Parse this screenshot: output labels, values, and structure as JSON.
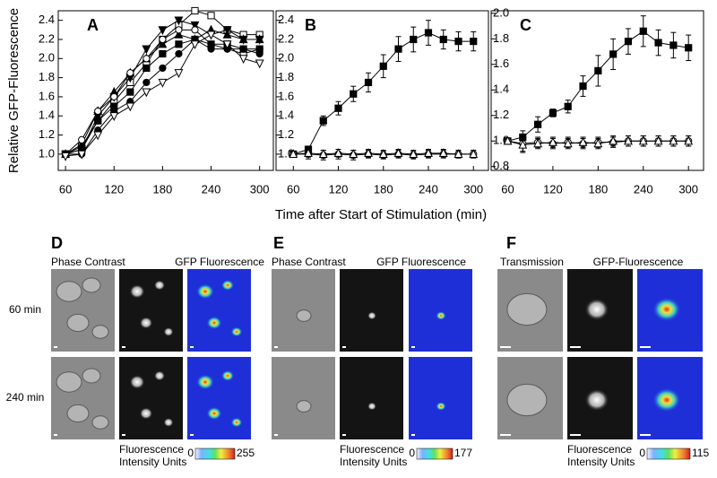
{
  "figure": {
    "ylabel": "Relative GFP-Fluorescence",
    "xlabel": "Time after Start of Stimulation  (min)"
  },
  "chart_data": [
    {
      "type": "line",
      "label": "A",
      "xlim": [
        51,
        317
      ],
      "ylim": [
        0.83,
        2.5
      ],
      "xticks": [
        60,
        120,
        180,
        240,
        300
      ],
      "yticks": [
        {
          "value": 1,
          "label": "1.0"
        },
        1.2,
        1.4,
        1.6,
        1.8,
        {
          "value": 2,
          "label": "2.0"
        },
        2.2,
        2.4
      ],
      "x": [
        60,
        80,
        100,
        120,
        140,
        160,
        180,
        200,
        220,
        240,
        260,
        280,
        300
      ],
      "series": [
        {
          "color": "#000000",
          "marker": "square-open",
          "values": [
            1.0,
            1.08,
            1.35,
            1.55,
            1.75,
            1.95,
            2.2,
            2.35,
            2.5,
            2.45,
            2.3,
            2.25,
            2.25
          ]
        },
        {
          "color": "#000000",
          "marker": "tri-down-filled",
          "values": [
            1.0,
            1.05,
            1.4,
            1.6,
            1.8,
            2.1,
            2.3,
            2.4,
            2.35,
            2.25,
            2.3,
            2.2,
            2.2
          ]
        },
        {
          "color": "#000000",
          "marker": "tri-up-filled",
          "values": [
            1.0,
            1.1,
            1.45,
            1.65,
            1.85,
            2.0,
            2.15,
            2.25,
            2.2,
            2.3,
            2.25,
            2.2,
            2.2
          ]
        },
        {
          "color": "#000000",
          "marker": "circle-open",
          "values": [
            1.0,
            1.15,
            1.45,
            1.6,
            1.85,
            2.0,
            2.2,
            2.3,
            2.3,
            2.15,
            2.1,
            2.05,
            2.1
          ]
        },
        {
          "color": "#000000",
          "marker": "square-filled",
          "values": [
            1.0,
            1.05,
            1.35,
            1.5,
            1.65,
            1.9,
            2.05,
            2.15,
            2.2,
            2.15,
            2.15,
            2.1,
            2.1
          ]
        },
        {
          "color": "#000000",
          "marker": "circle-filled",
          "values": [
            1.0,
            1.0,
            1.25,
            1.45,
            1.55,
            1.75,
            1.9,
            2.05,
            2.2,
            2.1,
            2.1,
            2.1,
            2.05
          ]
        },
        {
          "color": "#000000",
          "marker": "tri-down-open",
          "values": [
            0.98,
            1.0,
            1.2,
            1.4,
            1.5,
            1.65,
            1.75,
            1.85,
            2.15,
            2.25,
            2.15,
            2.0,
            1.95
          ]
        }
      ]
    },
    {
      "type": "line",
      "label": "B",
      "xlim": [
        37,
        320
      ],
      "ylim": [
        0.83,
        2.5
      ],
      "xticks": [
        60,
        120,
        180,
        240,
        300
      ],
      "yticks": [
        {
          "value": 1,
          "label": "1.0"
        },
        1.2,
        1.4,
        1.6,
        1.8,
        {
          "value": 2,
          "label": "2.0"
        },
        2.2,
        2.4
      ],
      "x": [
        60,
        80,
        100,
        120,
        140,
        160,
        180,
        200,
        220,
        240,
        260,
        280,
        300
      ],
      "series": [
        {
          "color": "#000000",
          "marker": "square-filled",
          "values": [
            1.0,
            1.05,
            1.35,
            1.48,
            1.63,
            1.75,
            1.92,
            2.1,
            2.2,
            2.27,
            2.2,
            2.18,
            2.18
          ],
          "errors": [
            0.02,
            0.03,
            0.05,
            0.07,
            0.08,
            0.1,
            0.12,
            0.13,
            0.13,
            0.13,
            0.1,
            0.1,
            0.1
          ]
        },
        {
          "color": "#000000",
          "marker": "circle-open",
          "values": [
            1.0,
            1.0,
            0.99,
            1.0,
            0.99,
            1.0,
            0.99,
            1.0,
            0.99,
            1.0,
            1.0,
            1.0,
            1.0
          ],
          "errors": [
            0.02,
            0.05,
            0.05,
            0.05,
            0.05,
            0.04,
            0.04,
            0.04,
            0.04,
            0.04,
            0.04,
            0.04,
            0.04
          ]
        },
        {
          "color": "#000000",
          "marker": "tri-up-open",
          "values": [
            1.0,
            1.01,
            1.0,
            1.01,
            1.0,
            1.01,
            1.0,
            1.01,
            1.0,
            1.01,
            1.01,
            1.0,
            1.0
          ],
          "errors": [
            0.02,
            0.04,
            0.04,
            0.04,
            0.04,
            0.04,
            0.04,
            0.04,
            0.04,
            0.04,
            0.04,
            0.04,
            0.04
          ]
        }
      ]
    },
    {
      "type": "line",
      "label": "C",
      "xlim": [
        38,
        320
      ],
      "ylim": [
        0.77,
        2.02
      ],
      "xticks": [
        60,
        120,
        180,
        240,
        300
      ],
      "yticks": [
        0.8,
        {
          "value": 1,
          "label": "1.0"
        },
        1.2,
        1.4,
        1.6,
        1.8,
        {
          "value": 2,
          "label": "2.0"
        }
      ],
      "x": [
        60,
        80,
        100,
        120,
        140,
        160,
        180,
        200,
        220,
        240,
        260,
        280,
        300
      ],
      "series": [
        {
          "color": "#000000",
          "marker": "square-filled",
          "values": [
            1.0,
            1.03,
            1.13,
            1.22,
            1.27,
            1.43,
            1.55,
            1.68,
            1.78,
            1.86,
            1.77,
            1.75,
            1.73
          ],
          "errors": [
            0.01,
            0.05,
            0.06,
            0.03,
            0.05,
            0.08,
            0.12,
            0.12,
            0.1,
            0.12,
            0.1,
            0.1,
            0.1
          ]
        },
        {
          "color": "#000000",
          "marker": "circle-open",
          "values": [
            1.0,
            0.98,
            0.99,
            0.98,
            0.99,
            0.98,
            0.99,
            0.99,
            1.0,
            1.0,
            1.0,
            1.0,
            1.0
          ],
          "errors": [
            0.01,
            0.06,
            0.04,
            0.04,
            0.04,
            0.04,
            0.04,
            0.04,
            0.04,
            0.04,
            0.04,
            0.04,
            0.04
          ]
        },
        {
          "color": "#000000",
          "marker": "tri-up-open",
          "values": [
            1.0,
            0.97,
            0.98,
            0.99,
            0.98,
            0.99,
            0.98,
            1.0,
            1.0,
            1.0,
            1.0,
            1.0,
            1.0
          ],
          "errors": [
            0.01,
            0.06,
            0.04,
            0.04,
            0.04,
            0.04,
            0.04,
            0.04,
            0.04,
            0.04,
            0.04,
            0.04,
            0.04
          ]
        }
      ]
    }
  ],
  "image_panels": [
    {
      "label": "D",
      "columns": [
        "Phase Contrast",
        "GFP Fluorescence"
      ],
      "rows": [
        "60 min",
        "240 min"
      ],
      "colorbar": {
        "title": [
          "Fluorescence",
          "Intensity Units"
        ],
        "min": 0,
        "max": 255
      }
    },
    {
      "label": "E",
      "columns": [
        "Phase Contrast",
        "GFP Fluorescence"
      ],
      "colorbar": {
        "title": [
          "Fluorescence",
          "Intensity Units"
        ],
        "min": 0,
        "max": 177
      }
    },
    {
      "label": "F",
      "columns": [
        "Transmission",
        "GFP-Fluorescence"
      ],
      "colorbar": {
        "title": [
          "Fluorescence",
          "Intensity Units"
        ],
        "min": 0,
        "max": 115
      }
    }
  ]
}
